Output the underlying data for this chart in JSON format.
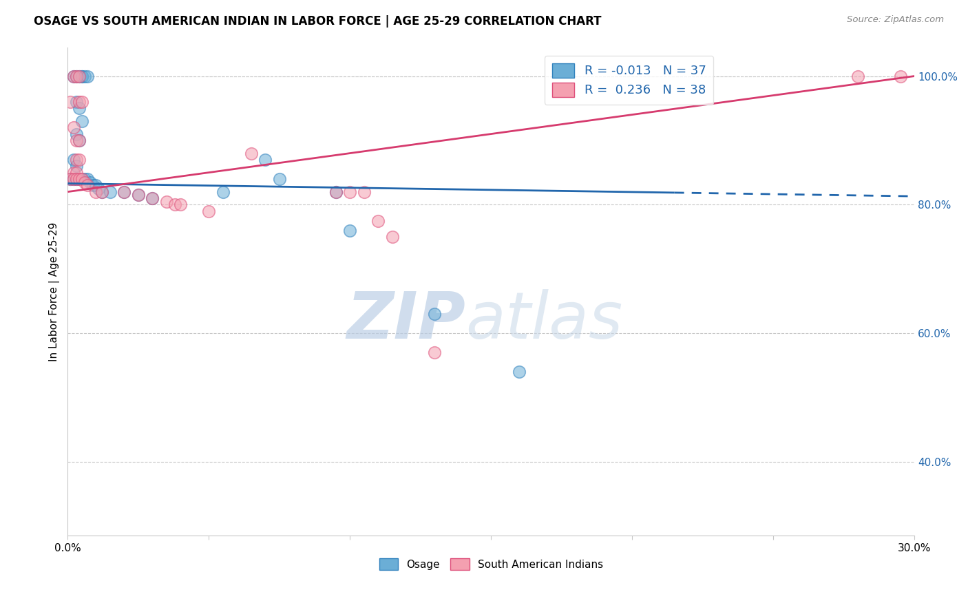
{
  "title": "OSAGE VS SOUTH AMERICAN INDIAN IN LABOR FORCE | AGE 25-29 CORRELATION CHART",
  "source": "Source: ZipAtlas.com",
  "ylabel": "In Labor Force | Age 25-29",
  "xmin": 0.0,
  "xmax": 0.3,
  "ymin": 0.285,
  "ymax": 1.045,
  "right_yticks": [
    1.0,
    0.8,
    0.6,
    0.4
  ],
  "right_ytick_labels": [
    "100.0%",
    "80.0%",
    "60.0%",
    "40.0%"
  ],
  "top_gridline": 1.0,
  "xticks": [
    0.0,
    0.05,
    0.1,
    0.15,
    0.2,
    0.25,
    0.3
  ],
  "xtick_labels": [
    "0.0%",
    "",
    "",
    "",
    "",
    "",
    "30.0%"
  ],
  "blue_R": -0.013,
  "blue_N": 37,
  "pink_R": 0.236,
  "pink_N": 38,
  "blue_color": "#6baed6",
  "pink_color": "#f4a0b0",
  "blue_edge_color": "#3182bd",
  "pink_edge_color": "#de4f7a",
  "blue_trend_color": "#2166ac",
  "pink_trend_color": "#d63b6e",
  "blue_trend": [
    0.0,
    0.833,
    0.3,
    0.813
  ],
  "blue_trend_solid_end": 0.215,
  "pink_trend": [
    0.0,
    0.82,
    0.3,
    1.0
  ],
  "blue_scatter": [
    [
      0.002,
      1.0
    ],
    [
      0.003,
      1.0
    ],
    [
      0.004,
      1.0
    ],
    [
      0.005,
      1.0
    ],
    [
      0.005,
      1.0
    ],
    [
      0.006,
      1.0
    ],
    [
      0.007,
      1.0
    ],
    [
      0.003,
      0.96
    ],
    [
      0.004,
      0.95
    ],
    [
      0.005,
      0.93
    ],
    [
      0.003,
      0.91
    ],
    [
      0.004,
      0.9
    ],
    [
      0.002,
      0.87
    ],
    [
      0.003,
      0.86
    ],
    [
      0.001,
      0.84
    ],
    [
      0.002,
      0.84
    ],
    [
      0.003,
      0.84
    ],
    [
      0.004,
      0.84
    ],
    [
      0.005,
      0.84
    ],
    [
      0.006,
      0.84
    ],
    [
      0.007,
      0.84
    ],
    [
      0.008,
      0.835
    ],
    [
      0.009,
      0.83
    ],
    [
      0.01,
      0.83
    ],
    [
      0.011,
      0.825
    ],
    [
      0.012,
      0.82
    ],
    [
      0.015,
      0.82
    ],
    [
      0.02,
      0.82
    ],
    [
      0.025,
      0.815
    ],
    [
      0.03,
      0.81
    ],
    [
      0.055,
      0.82
    ],
    [
      0.07,
      0.87
    ],
    [
      0.075,
      0.84
    ],
    [
      0.095,
      0.82
    ],
    [
      0.1,
      0.76
    ],
    [
      0.13,
      0.63
    ],
    [
      0.16,
      0.54
    ]
  ],
  "pink_scatter": [
    [
      0.001,
      0.96
    ],
    [
      0.002,
      1.0
    ],
    [
      0.003,
      1.0
    ],
    [
      0.004,
      1.0
    ],
    [
      0.004,
      0.96
    ],
    [
      0.005,
      0.96
    ],
    [
      0.002,
      0.92
    ],
    [
      0.003,
      0.9
    ],
    [
      0.004,
      0.9
    ],
    [
      0.003,
      0.87
    ],
    [
      0.004,
      0.87
    ],
    [
      0.002,
      0.85
    ],
    [
      0.003,
      0.85
    ],
    [
      0.001,
      0.84
    ],
    [
      0.002,
      0.84
    ],
    [
      0.003,
      0.84
    ],
    [
      0.004,
      0.84
    ],
    [
      0.005,
      0.84
    ],
    [
      0.006,
      0.835
    ],
    [
      0.007,
      0.83
    ],
    [
      0.01,
      0.82
    ],
    [
      0.012,
      0.82
    ],
    [
      0.02,
      0.82
    ],
    [
      0.025,
      0.815
    ],
    [
      0.03,
      0.81
    ],
    [
      0.035,
      0.805
    ],
    [
      0.038,
      0.8
    ],
    [
      0.04,
      0.8
    ],
    [
      0.05,
      0.79
    ],
    [
      0.065,
      0.88
    ],
    [
      0.095,
      0.82
    ],
    [
      0.1,
      0.82
    ],
    [
      0.105,
      0.82
    ],
    [
      0.11,
      0.775
    ],
    [
      0.115,
      0.75
    ],
    [
      0.13,
      0.57
    ],
    [
      0.28,
      1.0
    ],
    [
      0.295,
      1.0
    ]
  ],
  "watermark_zip": "ZIP",
  "watermark_atlas": "atlas",
  "legend_label_blue": "Osage",
  "legend_label_pink": "South American Indians",
  "background_color": "#ffffff",
  "grid_color": "#c8c8c8"
}
